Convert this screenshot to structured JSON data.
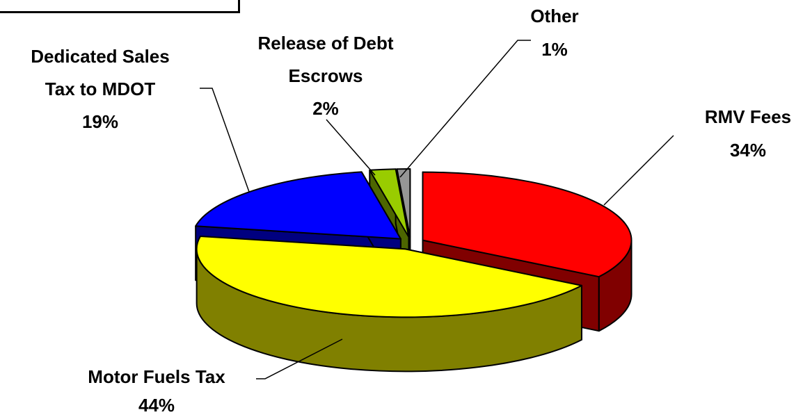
{
  "chart_data": {
    "type": "pie",
    "style": "3d-exploded",
    "title": "",
    "slices": [
      {
        "label_lines": [
          "RMV Fees"
        ],
        "name": "RMV Fees",
        "percent_label": "34%",
        "value": 34,
        "top_color": "#ff0000",
        "side_color": "#800000"
      },
      {
        "label_lines": [
          "Motor Fuels Tax"
        ],
        "name": "Motor Fuels Tax",
        "percent_label": "44%",
        "value": 44,
        "top_color": "#ffff00",
        "side_color": "#808000"
      },
      {
        "label_lines": [
          "Dedicated Sales",
          "Tax to MDOT"
        ],
        "name": "Dedicated Sales Tax to MDOT",
        "percent_label": "19%",
        "value": 19,
        "top_color": "#0000ff",
        "side_color": "#000080"
      },
      {
        "label_lines": [
          "Release of Debt",
          "Escrows"
        ],
        "name": "Release of Debt Escrows",
        "percent_label": "2%",
        "value": 2,
        "top_color": "#99cc00",
        "side_color": "#4d6600"
      },
      {
        "label_lines": [
          "Other"
        ],
        "name": "Other",
        "percent_label": "1%",
        "value": 1,
        "top_color": "#969696",
        "side_color": "#4b4b4b"
      }
    ]
  }
}
